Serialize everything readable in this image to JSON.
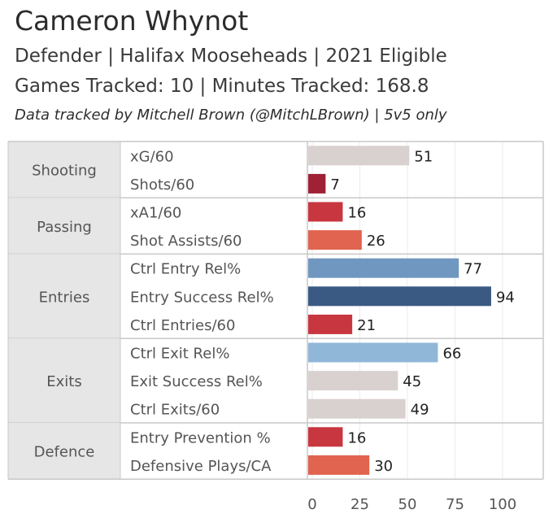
{
  "header": {
    "title": "Cameron Whynot",
    "subtitle_line1": "Defender | Halifax Mooseheads | 2021 Eligible",
    "subtitle_line2": "Games Tracked: 10 | Minutes Tracked: 168.8",
    "credit": "Data tracked by Mitchell Brown (@MitchLBrown) | 5v5 only"
  },
  "chart_data": {
    "type": "bar",
    "orientation": "horizontal",
    "xlim": [
      0,
      100
    ],
    "x_ticks": [
      0,
      25,
      50,
      75,
      100
    ],
    "grid": true,
    "groups": [
      {
        "name": "Shooting",
        "metrics": [
          {
            "label": "xG/60",
            "value": 51,
            "color": "#d9d1cf"
          },
          {
            "label": "Shots/60",
            "value": 7,
            "color": "#9e2135"
          }
        ]
      },
      {
        "name": "Passing",
        "metrics": [
          {
            "label": "xA1/60",
            "value": 16,
            "color": "#c8363f"
          },
          {
            "label": "Shot Assists/60",
            "value": 26,
            "color": "#e0644f"
          }
        ]
      },
      {
        "name": "Entries",
        "metrics": [
          {
            "label": "Ctrl Entry Rel%",
            "value": 77,
            "color": "#7097c0"
          },
          {
            "label": "Entry Success Rel%",
            "value": 94,
            "color": "#3a5a84"
          },
          {
            "label": "Ctrl Entries/60",
            "value": 21,
            "color": "#c8363f"
          }
        ]
      },
      {
        "name": "Exits",
        "metrics": [
          {
            "label": "Ctrl Exit Rel%",
            "value": 66,
            "color": "#90b6d8"
          },
          {
            "label": "Exit Success Rel%",
            "value": 45,
            "color": "#d9d1cf"
          },
          {
            "label": "Ctrl Exits/60",
            "value": 49,
            "color": "#d9d1cf"
          }
        ]
      },
      {
        "name": "Defence",
        "metrics": [
          {
            "label": "Entry Prevention %",
            "value": 16,
            "color": "#c8363f"
          },
          {
            "label": "Defensive Plays/CA",
            "value": 30,
            "color": "#e0644f"
          }
        ]
      }
    ]
  }
}
